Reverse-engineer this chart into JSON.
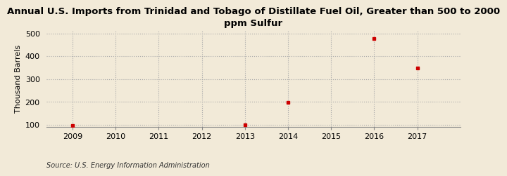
{
  "title": "Annual U.S. Imports from Trinidad and Tobago of Distillate Fuel Oil, Greater than 500 to 2000\nppm Sulfur",
  "ylabel": "Thousand Barrels",
  "source": "Source: U.S. Energy Information Administration",
  "background_color": "#f2ead8",
  "plot_background_color": "#f2ead8",
  "x_data": [
    2009,
    2013,
    2014,
    2016,
    2017
  ],
  "y_data": [
    97,
    99,
    197,
    476,
    348
  ],
  "marker_color": "#cc0000",
  "marker_style": "s",
  "marker_size": 3.5,
  "xlim": [
    2008.4,
    2018.0
  ],
  "ylim": [
    90,
    512
  ],
  "yticks": [
    100,
    200,
    300,
    400,
    500
  ],
  "xticks": [
    2009,
    2010,
    2011,
    2012,
    2013,
    2014,
    2015,
    2016,
    2017
  ],
  "title_fontsize": 9.5,
  "axis_label_fontsize": 8,
  "tick_fontsize": 8,
  "source_fontsize": 7,
  "grid_color": "#aaaaaa",
  "grid_linestyle": ":",
  "grid_linewidth": 0.8,
  "spine_color": "#888888"
}
